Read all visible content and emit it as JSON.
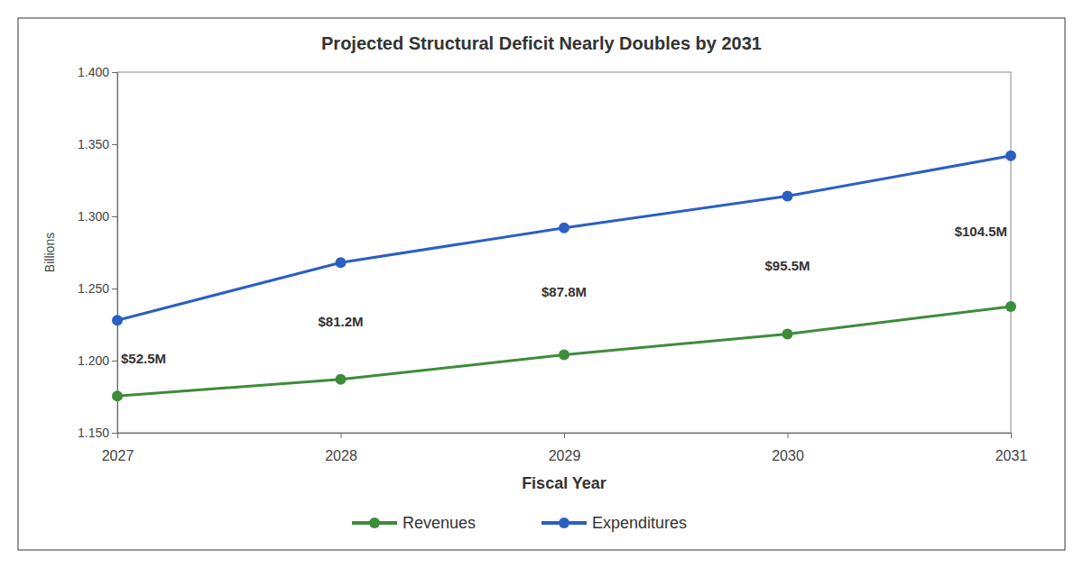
{
  "chart_data": {
    "type": "line",
    "title": "Projected Structural Deficit Nearly Doubles by 2031",
    "x_label": "Fiscal Year",
    "y_label": "Billions",
    "x": [
      2027,
      2028,
      2029,
      2030,
      2031
    ],
    "xlim": [
      2027,
      2031
    ],
    "xticks": [
      2027,
      2028,
      2029,
      2030,
      2031
    ],
    "ylim": [
      1.15,
      1.4
    ],
    "yticks": [
      {
        "value": 1.15,
        "label": "1.150"
      },
      {
        "value": 1.2,
        "label": "1.200"
      },
      {
        "value": 1.25,
        "label": "1.250"
      },
      {
        "value": 1.3,
        "label": "1.300"
      },
      {
        "value": 1.35,
        "label": "1.350"
      },
      {
        "value": 1.4,
        "label": "1.400"
      }
    ],
    "series": [
      {
        "name": "Revenues",
        "color": "#3d8c3a",
        "marker": "circle",
        "values": [
          1.1755,
          1.187,
          1.204,
          1.2185,
          1.2375
        ]
      },
      {
        "name": "Expenditures",
        "color": "#2b5fc4",
        "marker": "circle",
        "values": [
          1.228,
          1.268,
          1.292,
          1.314,
          1.342
        ]
      }
    ],
    "annotations": [
      {
        "x": 2027,
        "text": "$52.5M"
      },
      {
        "x": 2028,
        "text": "$81.2M"
      },
      {
        "x": 2029,
        "text": "$87.8M"
      },
      {
        "x": 2030,
        "text": "$95.5M"
      },
      {
        "x": 2031,
        "text": "$104.5M"
      }
    ],
    "grid": false,
    "legend": "bottom"
  }
}
